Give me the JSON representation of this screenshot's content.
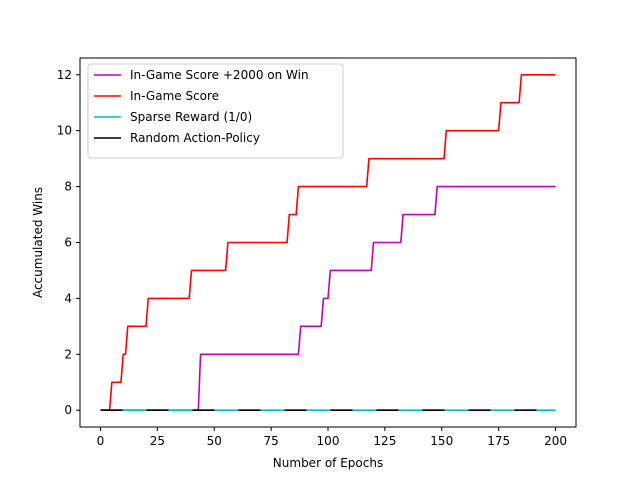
{
  "chart_data": {
    "type": "line",
    "xlabel": "Number of Epochs",
    "ylabel": "Accumulated Wins",
    "xlim": [
      -9,
      209
    ],
    "ylim": [
      -0.6,
      12.6
    ],
    "xticks": [
      0,
      25,
      50,
      75,
      100,
      125,
      150,
      175,
      200
    ],
    "yticks": [
      0,
      2,
      4,
      6,
      8,
      10,
      12
    ],
    "grid": false,
    "legend_position": "top-left",
    "series": [
      {
        "name": "In-Game Score +2000 on Win",
        "color": "#bf00bf",
        "x": [
          0,
          43,
          44,
          87,
          88,
          97,
          98,
          100,
          101,
          119,
          120,
          132,
          133,
          147,
          148,
          200
        ],
        "y": [
          0,
          0,
          2,
          2,
          3,
          3,
          4,
          4,
          5,
          5,
          6,
          6,
          7,
          7,
          8,
          8
        ]
      },
      {
        "name": "In-Game Score",
        "color": "#ff0000",
        "x": [
          0,
          4,
          5,
          9,
          10,
          11,
          12,
          20,
          21,
          39,
          40,
          55,
          56,
          82,
          83,
          86,
          87,
          117,
          118,
          151,
          152,
          175,
          176,
          184,
          185,
          200
        ],
        "y": [
          0,
          0,
          1,
          1,
          2,
          2,
          3,
          3,
          4,
          4,
          5,
          5,
          6,
          6,
          7,
          7,
          8,
          8,
          9,
          9,
          10,
          10,
          11,
          11,
          12,
          12
        ]
      },
      {
        "name": "Sparse Reward (1/0)",
        "color": "#00bfbf",
        "x": [
          0,
          200
        ],
        "y": [
          0,
          0
        ]
      },
      {
        "name": "Random Action-Policy",
        "color": "#000000",
        "x": [
          0,
          200
        ],
        "y": [
          0,
          0
        ],
        "dashed": true
      }
    ]
  }
}
